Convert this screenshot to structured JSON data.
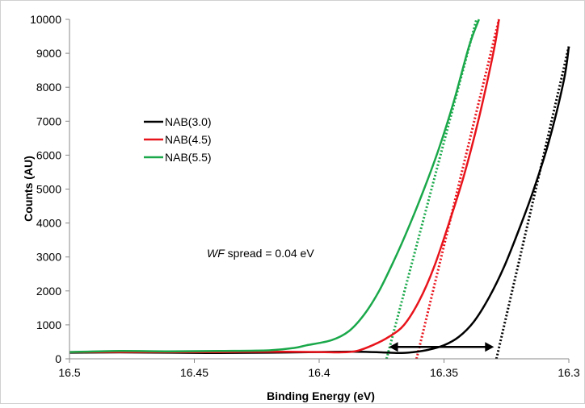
{
  "chart_data": {
    "type": "line",
    "xlabel": "Binding Energy (eV)",
    "ylabel": "Counts (AU)",
    "xlim": [
      16.5,
      16.3
    ],
    "x_reversed": true,
    "ylim": [
      0,
      10000
    ],
    "x_ticks": [
      "16.5",
      "16.45",
      "16.4",
      "16.35",
      "16.3"
    ],
    "y_ticks": [
      "0",
      "1000",
      "2000",
      "3000",
      "4000",
      "5000",
      "6000",
      "7000",
      "8000",
      "9000",
      "10000"
    ],
    "grid": false,
    "legend_position": "upper-left",
    "colors": {
      "black": "#000000",
      "red": "#e8141c",
      "green": "#1aa84a"
    },
    "series": [
      {
        "name": "NAB(3.0)",
        "color": "#000000",
        "x": [
          16.5,
          16.48,
          16.46,
          16.44,
          16.42,
          16.4,
          16.385,
          16.375,
          16.368,
          16.362,
          16.356,
          16.35,
          16.344,
          16.338,
          16.332,
          16.326,
          16.32,
          16.314,
          16.308,
          16.302,
          16.3
        ],
        "y": [
          180,
          190,
          180,
          170,
          180,
          200,
          210,
          190,
          170,
          200,
          270,
          400,
          650,
          1100,
          1800,
          2700,
          3800,
          5000,
          6400,
          8200,
          9200
        ]
      },
      {
        "name": "NAB(4.5)",
        "color": "#e8141c",
        "x": [
          16.5,
          16.48,
          16.46,
          16.44,
          16.42,
          16.4,
          16.392,
          16.385,
          16.378,
          16.372,
          16.366,
          16.36,
          16.354,
          16.348,
          16.342,
          16.336,
          16.33,
          16.328
        ],
        "y": [
          200,
          200,
          200,
          200,
          210,
          200,
          190,
          230,
          420,
          650,
          1000,
          1700,
          2700,
          4000,
          5400,
          7100,
          9100,
          10000
        ]
      },
      {
        "name": "NAB(5.5)",
        "color": "#1aa84a",
        "x": [
          16.5,
          16.48,
          16.46,
          16.44,
          16.42,
          16.41,
          16.405,
          16.395,
          16.388,
          16.382,
          16.376,
          16.37,
          16.364,
          16.358,
          16.352,
          16.346,
          16.34,
          16.336
        ],
        "y": [
          200,
          230,
          220,
          230,
          250,
          320,
          400,
          550,
          820,
          1300,
          2000,
          2900,
          3900,
          5000,
          6200,
          7600,
          9200,
          10000
        ]
      }
    ],
    "fit_lines": [
      {
        "color": "#000000",
        "style": "dotted",
        "x": [
          16.329,
          16.3
        ],
        "y": [
          0,
          9200
        ]
      },
      {
        "color": "#e8141c",
        "style": "dotted",
        "x": [
          16.361,
          16.328
        ],
        "y": [
          0,
          10000
        ]
      },
      {
        "color": "#1aa84a",
        "style": "dotted",
        "x": [
          16.373,
          16.337
        ],
        "y": [
          0,
          10000
        ]
      }
    ],
    "arrow": {
      "x_start": 16.372,
      "x_end": 16.33,
      "y": 350,
      "style": "double-headed"
    },
    "annotation": {
      "italic_part": "WF",
      "rest": " spread = 0.04 eV"
    }
  }
}
